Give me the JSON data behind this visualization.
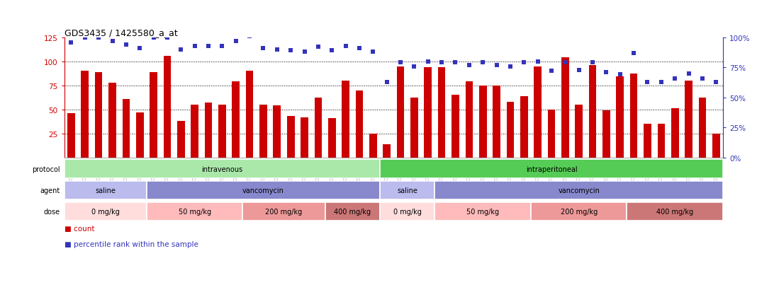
{
  "title": "GDS3435 / 1425580_a_at",
  "samples": [
    "GSM189045",
    "GSM189047",
    "GSM189048",
    "GSM189049",
    "GSM189050",
    "GSM189051",
    "GSM189052",
    "GSM189053",
    "GSM189054",
    "GSM189055",
    "GSM189056",
    "GSM189057",
    "GSM189058",
    "GSM189059",
    "GSM189060",
    "GSM189062",
    "GSM189063",
    "GSM189064",
    "GSM189065",
    "GSM189066",
    "GSM189068",
    "GSM189069",
    "GSM189070",
    "GSM189071",
    "GSM189072",
    "GSM189073",
    "GSM189074",
    "GSM189075",
    "GSM189076",
    "GSM189077",
    "GSM189078",
    "GSM189079",
    "GSM189080",
    "GSM189081",
    "GSM189082",
    "GSM189083",
    "GSM189084",
    "GSM189085",
    "GSM189086",
    "GSM189087",
    "GSM189088",
    "GSM189089",
    "GSM189090",
    "GSM189091",
    "GSM189092",
    "GSM189093",
    "GSM189094",
    "GSM189095"
  ],
  "bar_values": [
    46,
    90,
    89,
    78,
    61,
    47,
    89,
    106,
    38,
    55,
    57,
    55,
    79,
    90,
    55,
    54,
    43,
    42,
    62,
    41,
    80,
    70,
    25,
    14,
    95,
    62,
    94,
    94,
    65,
    79,
    75,
    75,
    58,
    64,
    95,
    50,
    104,
    55,
    96,
    49,
    84,
    87,
    35,
    35,
    51,
    80,
    62,
    25
  ],
  "percentile_values": [
    96,
    100,
    100,
    97,
    94,
    91,
    100,
    100,
    90,
    93,
    93,
    93,
    97,
    101,
    91,
    90,
    89,
    88,
    92,
    89,
    93,
    91,
    88,
    63,
    79,
    76,
    80,
    79,
    79,
    77,
    79,
    77,
    76,
    79,
    80,
    72,
    79,
    73,
    79,
    71,
    69,
    87,
    63,
    63,
    66,
    70,
    66,
    63
  ],
  "bar_color": "#cc0000",
  "dot_color": "#3333bb",
  "ylim_left": [
    0,
    125
  ],
  "ylim_right": [
    0,
    100
  ],
  "yticks_left": [
    25,
    50,
    75,
    100,
    125
  ],
  "yticks_right": [
    0,
    25,
    50,
    75,
    100
  ],
  "grid_values": [
    25,
    50,
    75,
    100
  ],
  "protocol_labels": [
    {
      "label": "intravenous",
      "start": 0,
      "end": 23,
      "color": "#aae8aa"
    },
    {
      "label": "intraperitoneal",
      "start": 23,
      "end": 48,
      "color": "#55cc55"
    }
  ],
  "agent_labels": [
    {
      "label": "saline",
      "start": 0,
      "end": 6,
      "color": "#bbbbee"
    },
    {
      "label": "vancomycin",
      "start": 6,
      "end": 23,
      "color": "#8888cc"
    },
    {
      "label": "saline",
      "start": 23,
      "end": 27,
      "color": "#bbbbee"
    },
    {
      "label": "vancomycin",
      "start": 27,
      "end": 48,
      "color": "#8888cc"
    }
  ],
  "dose_labels": [
    {
      "label": "0 mg/kg",
      "start": 0,
      "end": 6,
      "color": "#ffdddd"
    },
    {
      "label": "50 mg/kg",
      "start": 6,
      "end": 13,
      "color": "#ffbbbb"
    },
    {
      "label": "200 mg/kg",
      "start": 13,
      "end": 19,
      "color": "#ee9999"
    },
    {
      "label": "400 mg/kg",
      "start": 19,
      "end": 23,
      "color": "#cc7777"
    },
    {
      "label": "0 mg/kg",
      "start": 23,
      "end": 27,
      "color": "#ffdddd"
    },
    {
      "label": "50 mg/kg",
      "start": 27,
      "end": 34,
      "color": "#ffbbbb"
    },
    {
      "label": "200 mg/kg",
      "start": 34,
      "end": 41,
      "color": "#ee9999"
    },
    {
      "label": "400 mg/kg",
      "start": 41,
      "end": 48,
      "color": "#cc7777"
    }
  ],
  "legend_count_color": "#cc0000",
  "legend_dot_color": "#3333bb",
  "background_color": "#ffffff"
}
